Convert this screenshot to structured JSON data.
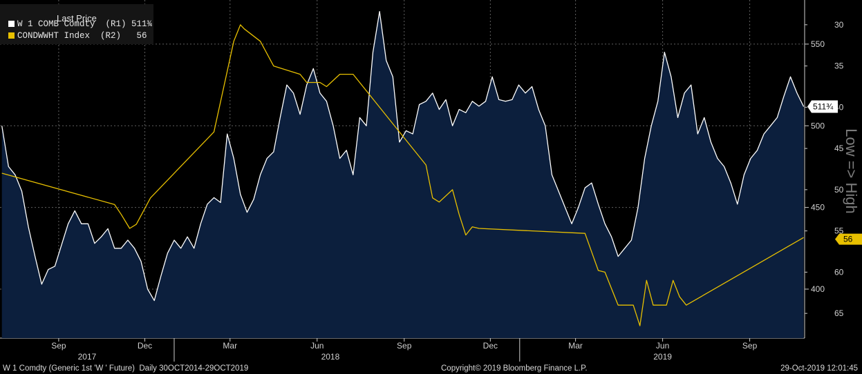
{
  "legend": {
    "title": "Last Price",
    "rows": [
      {
        "text": "W 1 COMB Comdty  (R1) 511¾",
        "color": "#ffffff"
      },
      {
        "text": "CONDWWHT Index  (R2)   56",
        "color": "#e8c000"
      }
    ]
  },
  "footer": {
    "left": "W 1 Comdty (Generic 1st 'W ' Future)  Daily 30OCT2014-29OCT2019",
    "center": "Copyright© 2019 Bloomberg Finance L.P.",
    "right": "29-Oct-2019 12:01:45"
  },
  "side_label": "Low => High",
  "chart_data": {
    "type": "area",
    "x_ticks": [
      "Sep",
      "Dec",
      "Mar",
      "Jun",
      "Sep",
      "Dec",
      "Mar",
      "Jun",
      "Sep"
    ],
    "x_tick_dates": [
      "2017-09-01",
      "2017-12-01",
      "2018-03-01",
      "2018-06-01",
      "2018-09-01",
      "2018-12-01",
      "2019-03-01",
      "2019-06-01",
      "2019-09-01"
    ],
    "years": [
      {
        "label": "2017",
        "date": "2017-10-01"
      },
      {
        "label": "2018",
        "date": "2018-06-15"
      },
      {
        "label": "2019",
        "date": "2019-06-01"
      }
    ],
    "x_range": [
      "2017-07-01",
      "2019-10-29"
    ],
    "y1": {
      "ticks": [
        400,
        450,
        500,
        550
      ],
      "range": [
        370,
        577
      ],
      "axis": "right"
    },
    "y2": {
      "ticks": [
        30,
        35,
        40,
        45,
        50,
        55,
        60,
        65
      ],
      "range": [
        27,
        68
      ],
      "inverted": true,
      "axis": "right"
    },
    "grid": true,
    "last_labels": [
      {
        "series": "W 1 COMB Comdty",
        "text": "511¾",
        "value": 511.75
      },
      {
        "series": "CONDWWHT Index",
        "text": "56",
        "value": 56
      }
    ],
    "series": [
      {
        "name": "W 1 COMB Comdty",
        "axis": "y1",
        "style": "area",
        "color": "#ffffff",
        "fill": "#0c1f3d",
        "points": [
          [
            "2017-07-03",
            500
          ],
          [
            "2017-07-10",
            475
          ],
          [
            "2017-07-17",
            470
          ],
          [
            "2017-07-24",
            460
          ],
          [
            "2017-07-31",
            438
          ],
          [
            "2017-08-07",
            420
          ],
          [
            "2017-08-14",
            403
          ],
          [
            "2017-08-21",
            412
          ],
          [
            "2017-08-28",
            414
          ],
          [
            "2017-09-04",
            427
          ],
          [
            "2017-09-11",
            440
          ],
          [
            "2017-09-18",
            448
          ],
          [
            "2017-09-25",
            440
          ],
          [
            "2017-10-02",
            440
          ],
          [
            "2017-10-09",
            428
          ],
          [
            "2017-10-16",
            432
          ],
          [
            "2017-10-23",
            437
          ],
          [
            "2017-10-30",
            425
          ],
          [
            "2017-11-06",
            425
          ],
          [
            "2017-11-13",
            430
          ],
          [
            "2017-11-20",
            425
          ],
          [
            "2017-11-27",
            417
          ],
          [
            "2017-12-04",
            400
          ],
          [
            "2017-12-11",
            393
          ],
          [
            "2017-12-18",
            408
          ],
          [
            "2017-12-25",
            422
          ],
          [
            "2018-01-01",
            430
          ],
          [
            "2018-01-08",
            425
          ],
          [
            "2018-01-15",
            432
          ],
          [
            "2018-01-22",
            425
          ],
          [
            "2018-01-29",
            440
          ],
          [
            "2018-02-05",
            452
          ],
          [
            "2018-02-12",
            456
          ],
          [
            "2018-02-19",
            453
          ],
          [
            "2018-02-26",
            495
          ],
          [
            "2018-03-05",
            480
          ],
          [
            "2018-03-12",
            458
          ],
          [
            "2018-03-19",
            447
          ],
          [
            "2018-03-26",
            455
          ],
          [
            "2018-04-02",
            470
          ],
          [
            "2018-04-09",
            480
          ],
          [
            "2018-04-16",
            484
          ],
          [
            "2018-04-23",
            505
          ],
          [
            "2018-04-30",
            525
          ],
          [
            "2018-05-07",
            520
          ],
          [
            "2018-05-14",
            507
          ],
          [
            "2018-05-21",
            525
          ],
          [
            "2018-05-28",
            535
          ],
          [
            "2018-06-04",
            520
          ],
          [
            "2018-06-11",
            515
          ],
          [
            "2018-06-18",
            500
          ],
          [
            "2018-06-25",
            480
          ],
          [
            "2018-07-02",
            485
          ],
          [
            "2018-07-09",
            470
          ],
          [
            "2018-07-16",
            505
          ],
          [
            "2018-07-23",
            500
          ],
          [
            "2018-07-30",
            545
          ],
          [
            "2018-08-06",
            570
          ],
          [
            "2018-08-13",
            540
          ],
          [
            "2018-08-20",
            530
          ],
          [
            "2018-08-27",
            490
          ],
          [
            "2018-09-03",
            497
          ],
          [
            "2018-09-10",
            495
          ],
          [
            "2018-09-17",
            513
          ],
          [
            "2018-09-24",
            515
          ],
          [
            "2018-10-01",
            520
          ],
          [
            "2018-10-08",
            510
          ],
          [
            "2018-10-15",
            516
          ],
          [
            "2018-10-22",
            500
          ],
          [
            "2018-10-29",
            510
          ],
          [
            "2018-11-05",
            508
          ],
          [
            "2018-11-12",
            515
          ],
          [
            "2018-11-19",
            512
          ],
          [
            "2018-11-26",
            515
          ],
          [
            "2018-12-03",
            530
          ],
          [
            "2018-12-10",
            516
          ],
          [
            "2018-12-17",
            515
          ],
          [
            "2018-12-24",
            516
          ],
          [
            "2018-12-31",
            525
          ],
          [
            "2019-01-07",
            520
          ],
          [
            "2019-01-14",
            524
          ],
          [
            "2019-01-21",
            510
          ],
          [
            "2019-01-28",
            500
          ],
          [
            "2019-02-04",
            470
          ],
          [
            "2019-02-11",
            460
          ],
          [
            "2019-02-18",
            450
          ],
          [
            "2019-02-25",
            440
          ],
          [
            "2019-03-04",
            450
          ],
          [
            "2019-03-11",
            462
          ],
          [
            "2019-03-18",
            465
          ],
          [
            "2019-03-25",
            452
          ],
          [
            "2019-04-01",
            440
          ],
          [
            "2019-04-08",
            432
          ],
          [
            "2019-04-15",
            420
          ],
          [
            "2019-04-22",
            425
          ],
          [
            "2019-04-29",
            430
          ],
          [
            "2019-05-06",
            450
          ],
          [
            "2019-05-13",
            480
          ],
          [
            "2019-05-20",
            500
          ],
          [
            "2019-05-27",
            515
          ],
          [
            "2019-06-03",
            545
          ],
          [
            "2019-06-10",
            530
          ],
          [
            "2019-06-17",
            505
          ],
          [
            "2019-06-24",
            520
          ],
          [
            "2019-07-01",
            525
          ],
          [
            "2019-07-08",
            495
          ],
          [
            "2019-07-15",
            505
          ],
          [
            "2019-07-22",
            490
          ],
          [
            "2019-07-29",
            480
          ],
          [
            "2019-08-05",
            475
          ],
          [
            "2019-08-12",
            465
          ],
          [
            "2019-08-19",
            452
          ],
          [
            "2019-08-26",
            470
          ],
          [
            "2019-09-02",
            480
          ],
          [
            "2019-09-09",
            485
          ],
          [
            "2019-09-16",
            495
          ],
          [
            "2019-09-23",
            500
          ],
          [
            "2019-09-30",
            505
          ],
          [
            "2019-10-07",
            518
          ],
          [
            "2019-10-14",
            530
          ],
          [
            "2019-10-21",
            520
          ],
          [
            "2019-10-28",
            511.75
          ]
        ]
      },
      {
        "name": "CONDWWHT Index",
        "axis": "y2",
        "style": "line",
        "color": "#e8c000",
        "points": [
          [
            "2017-07-03",
            48
          ],
          [
            "2017-10-30",
            51.8
          ],
          [
            "2017-11-06",
            53
          ],
          [
            "2017-11-15",
            54.7
          ],
          [
            "2017-11-22",
            54.2
          ],
          [
            "2017-12-07",
            51
          ],
          [
            "2018-02-12",
            43
          ],
          [
            "2018-03-05",
            32
          ],
          [
            "2018-03-12",
            30
          ],
          [
            "2018-03-16",
            30.5
          ],
          [
            "2018-04-02",
            32
          ],
          [
            "2018-04-16",
            35
          ],
          [
            "2018-04-30",
            35.5
          ],
          [
            "2018-05-14",
            36
          ],
          [
            "2018-05-21",
            37
          ],
          [
            "2018-06-04",
            37
          ],
          [
            "2018-06-11",
            37.5
          ],
          [
            "2018-06-25",
            36
          ],
          [
            "2018-07-09",
            36
          ],
          [
            "2018-08-06",
            40
          ],
          [
            "2018-09-24",
            47
          ],
          [
            "2018-10-01",
            51
          ],
          [
            "2018-10-08",
            51.5
          ],
          [
            "2018-10-22",
            50
          ],
          [
            "2018-10-29",
            53
          ],
          [
            "2018-11-05",
            55.5
          ],
          [
            "2018-11-12",
            54.5
          ],
          [
            "2018-11-19",
            54.7
          ],
          [
            "2019-03-11",
            55.3
          ],
          [
            "2019-03-25",
            59.8
          ],
          [
            "2019-04-01",
            60
          ],
          [
            "2019-04-15",
            64
          ],
          [
            "2019-05-01",
            64
          ],
          [
            "2019-05-08",
            66.5
          ],
          [
            "2019-05-15",
            61
          ],
          [
            "2019-05-22",
            64
          ],
          [
            "2019-06-05",
            64
          ],
          [
            "2019-06-12",
            61
          ],
          [
            "2019-06-19",
            63
          ],
          [
            "2019-06-26",
            64
          ],
          [
            "2019-10-28",
            55.8
          ]
        ]
      }
    ]
  }
}
